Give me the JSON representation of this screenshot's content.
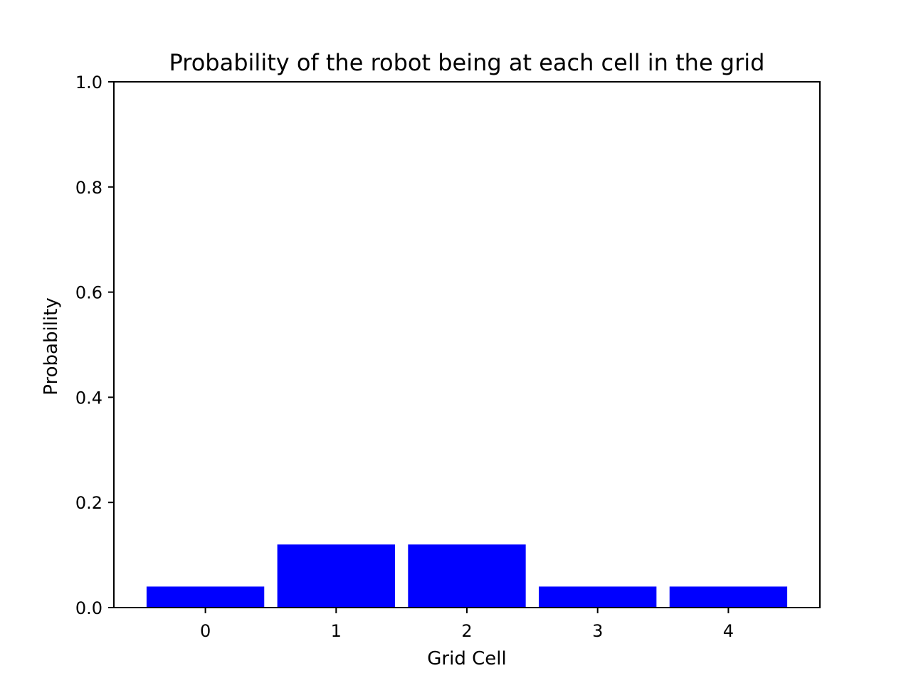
{
  "chart_data": {
    "type": "bar",
    "title": "Probability of the robot being at each cell in the grid",
    "xlabel": "Grid Cell",
    "ylabel": "Probability",
    "categories": [
      "0",
      "1",
      "2",
      "3",
      "4"
    ],
    "values": [
      0.04,
      0.12,
      0.12,
      0.04,
      0.04
    ],
    "ylim": [
      0,
      1.0
    ],
    "yticks": [
      "0.0",
      "0.2",
      "0.4",
      "0.6",
      "0.8",
      "1.0"
    ],
    "bar_color": "#0000ff",
    "grid": false
  }
}
